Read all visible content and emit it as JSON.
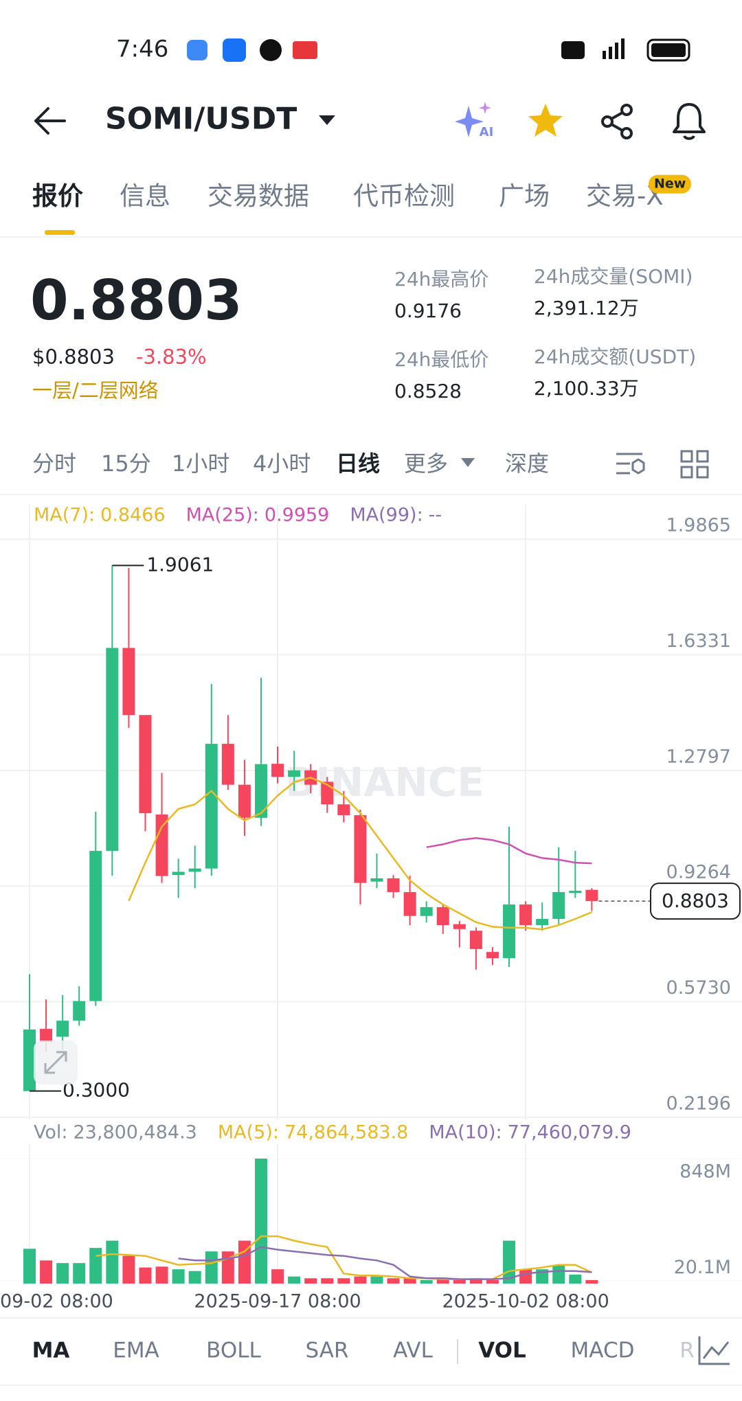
{
  "status_bar": {
    "time": "7:46"
  },
  "header": {
    "pair": "SOMI/USDT"
  },
  "tabs": [
    "报价",
    "信息",
    "交易数据",
    "代币检测",
    "广场",
    "交易-X"
  ],
  "tab_badge": "New",
  "ticker": {
    "price": "0.8803",
    "usd_price": "$0.8803",
    "change": "-3.83%",
    "tag": "一层/二层网络",
    "stats": [
      {
        "label": "24h最高价",
        "value": "0.9176"
      },
      {
        "label": "24h成交量(SOMI)",
        "value": "2,391.12万"
      },
      {
        "label": "24h最低价",
        "value": "0.8528"
      },
      {
        "label": "24h成交额(USDT)",
        "value": "2,100.33万"
      }
    ]
  },
  "intervals": [
    "分时",
    "15分",
    "1小时",
    "4小时",
    "日线",
    "更多",
    "深度"
  ],
  "chart_data": [
    {
      "type": "candlestick",
      "watermark": "BINANCE",
      "categories": [
        "09-02 08:00",
        null,
        null,
        null,
        null,
        null,
        null,
        null,
        null,
        null,
        null,
        null,
        null,
        null,
        null,
        "2025-09-17 08:00",
        null,
        null,
        null,
        null,
        null,
        null,
        null,
        null,
        null,
        null,
        null,
        null,
        null,
        null,
        "2025-10-02 08:00",
        null,
        null,
        null,
        null
      ],
      "open": [
        0.3,
        0.49,
        0.466,
        0.515,
        0.575,
        1.034,
        1.654,
        1.449,
        1.145,
        0.96,
        0.97,
        0.98,
        1.361,
        1.236,
        1.135,
        1.3,
        1.26,
        1.28,
        1.245,
        1.176,
        1.143,
        0.94,
        0.95,
        0.908,
        0.835,
        0.862,
        0.81,
        0.79,
        0.725,
        0.706,
        0.87,
        0.807,
        0.826,
        0.905,
        0.915
      ],
      "high": [
        0.657,
        0.58,
        0.593,
        0.62,
        1.154,
        1.9061,
        1.898,
        1.449,
        1.272,
        1.01,
        1.05,
        1.544,
        1.449,
        1.312,
        1.563,
        1.353,
        1.34,
        1.299,
        1.26,
        1.217,
        1.16,
        1.026,
        0.96,
        0.958,
        0.88,
        0.87,
        0.82,
        0.8,
        0.74,
        1.108,
        0.88,
        0.876,
        1.045,
        1.034,
        0.92
      ],
      "low": [
        0.3,
        0.42,
        0.425,
        0.5,
        0.56,
        0.958,
        1.41,
        1.094,
        0.936,
        0.89,
        0.92,
        0.958,
        1.22,
        1.08,
        1.11,
        1.24,
        1.217,
        1.21,
        1.15,
        1.121,
        0.87,
        0.92,
        0.89,
        0.807,
        0.815,
        0.78,
        0.739,
        0.671,
        0.685,
        0.679,
        0.79,
        0.79,
        0.81,
        0.89,
        0.85
      ],
      "close": [
        0.488,
        0.45,
        0.515,
        0.575,
        1.034,
        1.654,
        1.449,
        1.149,
        0.957,
        0.97,
        0.98,
        1.361,
        1.236,
        1.135,
        1.299,
        1.26,
        1.28,
        1.236,
        1.176,
        1.143,
        0.936,
        0.95,
        0.908,
        0.835,
        0.862,
        0.807,
        0.795,
        0.734,
        0.706,
        0.87,
        0.807,
        0.826,
        0.908,
        0.912,
        0.8803
      ],
      "up_color": "#2ebd85",
      "down_color": "#f6465d",
      "series": [
        {
          "name": "MA(7):",
          "color": "#e8b923",
          "current": 0.8466,
          "values": [
            null,
            null,
            null,
            null,
            null,
            null,
            0.881,
            0.998,
            1.108,
            1.162,
            1.176,
            1.217,
            1.162,
            1.127,
            1.149,
            1.203,
            1.244,
            1.258,
            1.236,
            1.203,
            1.149,
            1.08,
            1.012,
            0.944,
            0.903,
            0.87,
            0.843,
            0.816,
            0.802,
            0.799,
            0.799,
            0.794,
            0.807,
            0.826,
            0.8466
          ]
        },
        {
          "name": "MA(25):",
          "color": "#d050b0",
          "current": 0.9959,
          "values": [
            null,
            null,
            null,
            null,
            null,
            null,
            null,
            null,
            null,
            null,
            null,
            null,
            null,
            null,
            null,
            null,
            null,
            null,
            null,
            null,
            null,
            null,
            null,
            null,
            1.045,
            1.054,
            1.067,
            1.073,
            1.067,
            1.054,
            1.026,
            1.012,
            1.007,
            0.998,
            0.9959
          ]
        },
        {
          "name": "MA(99):",
          "color": "#8a6fb0",
          "current": "--",
          "values": [
            null,
            null,
            null,
            null,
            null,
            null,
            null,
            null,
            null,
            null,
            null,
            null,
            null,
            null,
            null,
            null,
            null,
            null,
            null,
            null,
            null,
            null,
            null,
            null,
            null,
            null,
            null,
            null,
            null,
            null,
            null,
            null,
            null,
            null,
            null
          ]
        }
      ],
      "ylim": [
        0.2196,
        1.9865
      ],
      "yticks": [
        1.9865,
        1.6331,
        1.2797,
        0.9264,
        {
          "value": 0.573,
          "label": "0.5730"
        },
        0.2196
      ],
      "grid": true,
      "high_marker": 1.9061,
      "low_marker": {
        "value": 0.3,
        "label": "0.3000"
      },
      "last_price": 0.8803
    },
    {
      "type": "bar",
      "name": "Vol:",
      "current": {
        "value": 23800484.3,
        "label": "23,800,484.3"
      },
      "values": [
        236000000.0,
        157000000.0,
        139000000.0,
        139000000.0,
        242000000.0,
        291000000.0,
        188000000.0,
        109000000.0,
        115000000.0,
        97000000.0,
        85000000.0,
        218000000.0,
        218000000.0,
        291000000.0,
        848000000.0,
        97000000.0,
        48000000.0,
        36000000.0,
        36000000.0,
        36000000.0,
        48000000.0,
        48000000.0,
        36000000.0,
        36000000.0,
        24000000.0,
        36000000.0,
        24000000.0,
        36000000.0,
        24000000.0,
        291000000.0,
        97000000.0,
        97000000.0,
        121000000.0,
        61000000.0,
        23800484.3
      ],
      "series": [
        {
          "name": "MA(5):",
          "color": "#e8b923",
          "current": {
            "value": 74864583.8,
            "label": "74,864,583.8"
          },
          "values": [
            null,
            null,
            null,
            null,
            188000000.0,
            200000000.0,
            194000000.0,
            188000000.0,
            157000000.0,
            127000000.0,
            133000000.0,
            139000000.0,
            170000000.0,
            218000000.0,
            321000000.0,
            321000000.0,
            291000000.0,
            267000000.0,
            248000000.0,
            67000000.0,
            55000000.0,
            55000000.0,
            48000000.0,
            36000000.0,
            36000000.0,
            30000000.0,
            30000000.0,
            30000000.0,
            30000000.0,
            85000000.0,
            97000000.0,
            109000000.0,
            127000000.0,
            127000000.0,
            74864583.8
          ]
        },
        {
          "name": "MA(10):",
          "color": "#8a6fb0",
          "current": {
            "value": 77460079.9,
            "label": "77,460,079.9"
          },
          "values": [
            null,
            null,
            null,
            null,
            null,
            null,
            null,
            null,
            null,
            170000000.0,
            157000000.0,
            157000000.0,
            170000000.0,
            188000000.0,
            248000000.0,
            230000000.0,
            218000000.0,
            206000000.0,
            194000000.0,
            188000000.0,
            170000000.0,
            157000000.0,
            127000000.0,
            48000000.0,
            36000000.0,
            36000000.0,
            30000000.0,
            30000000.0,
            30000000.0,
            36000000.0,
            67000000.0,
            79000000.0,
            85000000.0,
            85000000.0,
            77460079.9
          ]
        }
      ],
      "ylim": [
        0,
        848000000.0
      ],
      "yticks": [
        {
          "value": 848000000.0,
          "label": "848M"
        },
        {
          "value": 20100000.0,
          "label": "20.1M"
        }
      ]
    }
  ],
  "indicators": [
    "MA",
    "EMA",
    "BOLL",
    "SAR",
    "AVL",
    "VOL",
    "MACD",
    "R"
  ]
}
